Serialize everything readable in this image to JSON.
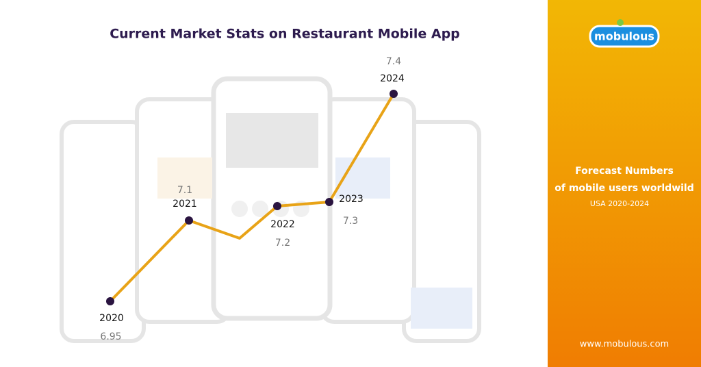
{
  "title": "Current Market Stats on Restaurant Mobile App",
  "brand": "mobulous",
  "panel": {
    "lines": [
      "Forecast Numbers",
      "of mobile users worldwild"
    ],
    "subtitle": "USA 2020-2024",
    "website": "www.mobulous.com"
  },
  "points": [
    {
      "year": "2020",
      "value": "6.95"
    },
    {
      "year": "2021",
      "value": "7.1"
    },
    {
      "year": "2022",
      "value": "7.2"
    },
    {
      "year": "2023",
      "value": "7.3"
    },
    {
      "year": "2024",
      "value": "7.4"
    }
  ]
}
